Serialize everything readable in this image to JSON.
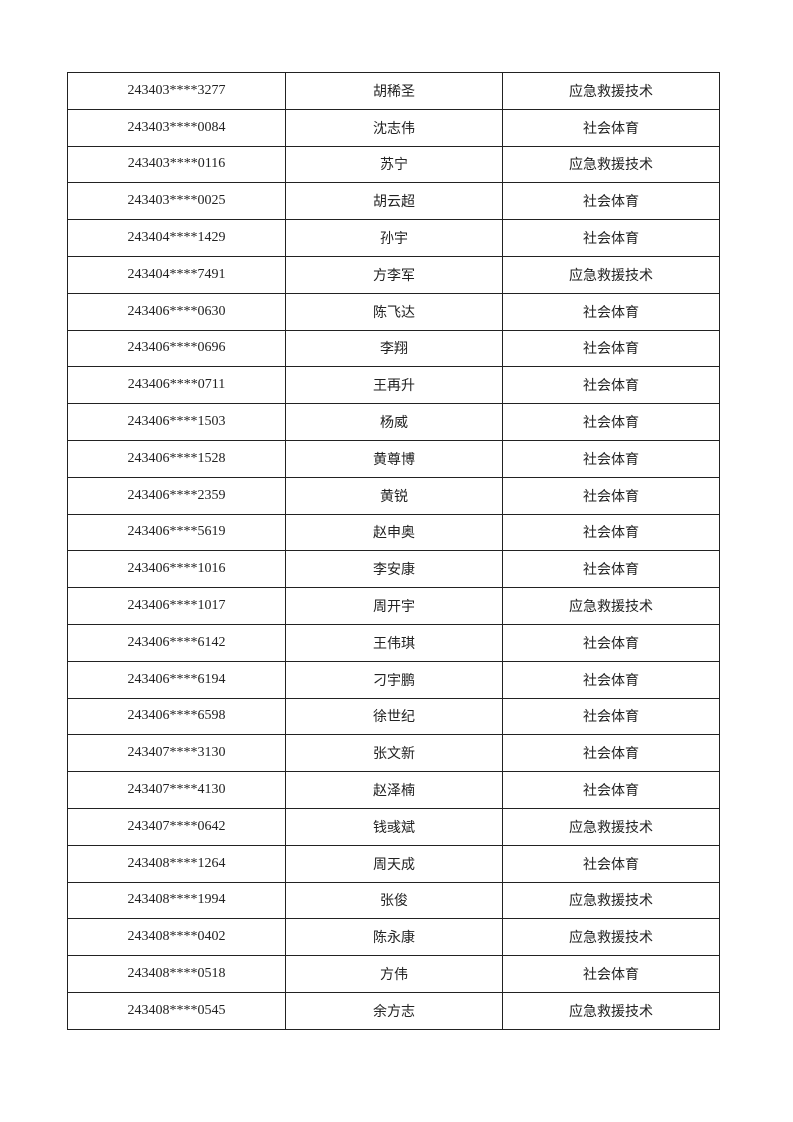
{
  "rows": [
    {
      "id": "243403****3277",
      "name": "胡稀圣",
      "major": "应急救援技术"
    },
    {
      "id": "243403****0084",
      "name": "沈志伟",
      "major": "社会体育"
    },
    {
      "id": "243403****0116",
      "name": "苏宁",
      "major": "应急救援技术"
    },
    {
      "id": "243403****0025",
      "name": "胡云超",
      "major": "社会体育"
    },
    {
      "id": "243404****1429",
      "name": "孙宇",
      "major": "社会体育"
    },
    {
      "id": "243404****7491",
      "name": "方李军",
      "major": "应急救援技术"
    },
    {
      "id": "243406****0630",
      "name": "陈飞达",
      "major": "社会体育"
    },
    {
      "id": "243406****0696",
      "name": "李翔",
      "major": "社会体育"
    },
    {
      "id": "243406****0711",
      "name": "王再升",
      "major": "社会体育"
    },
    {
      "id": "243406****1503",
      "name": "杨威",
      "major": "社会体育"
    },
    {
      "id": "243406****1528",
      "name": "黄尊博",
      "major": "社会体育"
    },
    {
      "id": "243406****2359",
      "name": "黄锐",
      "major": "社会体育"
    },
    {
      "id": "243406****5619",
      "name": "赵申奥",
      "major": "社会体育"
    },
    {
      "id": "243406****1016",
      "name": "李安康",
      "major": "社会体育"
    },
    {
      "id": "243406****1017",
      "name": "周开宇",
      "major": "应急救援技术"
    },
    {
      "id": "243406****6142",
      "name": "王伟琪",
      "major": "社会体育"
    },
    {
      "id": "243406****6194",
      "name": "刁宇鹏",
      "major": "社会体育"
    },
    {
      "id": "243406****6598",
      "name": "徐世纪",
      "major": "社会体育"
    },
    {
      "id": "243407****3130",
      "name": "张文新",
      "major": "社会体育"
    },
    {
      "id": "243407****4130",
      "name": "赵泽楠",
      "major": "社会体育"
    },
    {
      "id": "243407****0642",
      "name": "钱彧斌",
      "major": "应急救援技术"
    },
    {
      "id": "243408****1264",
      "name": "周天成",
      "major": "社会体育"
    },
    {
      "id": "243408****1994",
      "name": "张俊",
      "major": "应急救援技术"
    },
    {
      "id": "243408****0402",
      "name": "陈永康",
      "major": "应急救援技术"
    },
    {
      "id": "243408****0518",
      "name": "方伟",
      "major": "社会体育"
    },
    {
      "id": "243408****0545",
      "name": "余方志",
      "major": "应急救援技术"
    }
  ]
}
